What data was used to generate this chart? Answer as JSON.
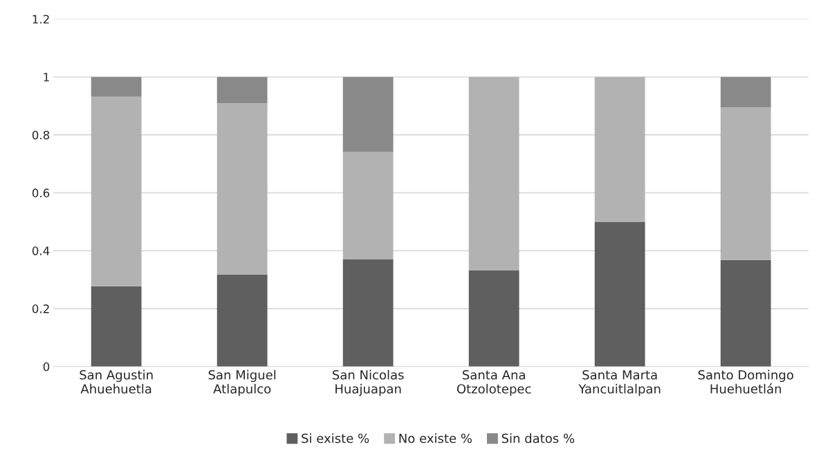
{
  "chart_data": {
    "type": "bar",
    "stacked": true,
    "categories": [
      "San Agustin\nAhuehuetla",
      "San Miguel\nAtlapulco",
      "San Nicolas\nHuajuapan",
      "Santa Ana\nOtzolotepec",
      "Santa Marta\nYancuitlalpan",
      "Santo Domingo\nHuehuetlán"
    ],
    "series": [
      {
        "name": "Si existe %",
        "color": "#5f5f5f",
        "values": [
          0.277,
          0.318,
          0.37,
          0.333,
          0.5,
          0.368
        ]
      },
      {
        "name": "No existe %",
        "color": "#b2b2b2",
        "values": [
          0.655,
          0.591,
          0.371,
          0.667,
          0.5,
          0.527
        ]
      },
      {
        "name": "Sin datos %",
        "color": "#898989",
        "values": [
          0.068,
          0.091,
          0.259,
          0,
          0,
          0.105
        ]
      }
    ],
    "ylim": [
      0,
      1.2
    ],
    "yticks": [
      0,
      0.2,
      0.4,
      0.6,
      0.8,
      1,
      1.2
    ],
    "grid": "y",
    "legend": "bottom"
  }
}
